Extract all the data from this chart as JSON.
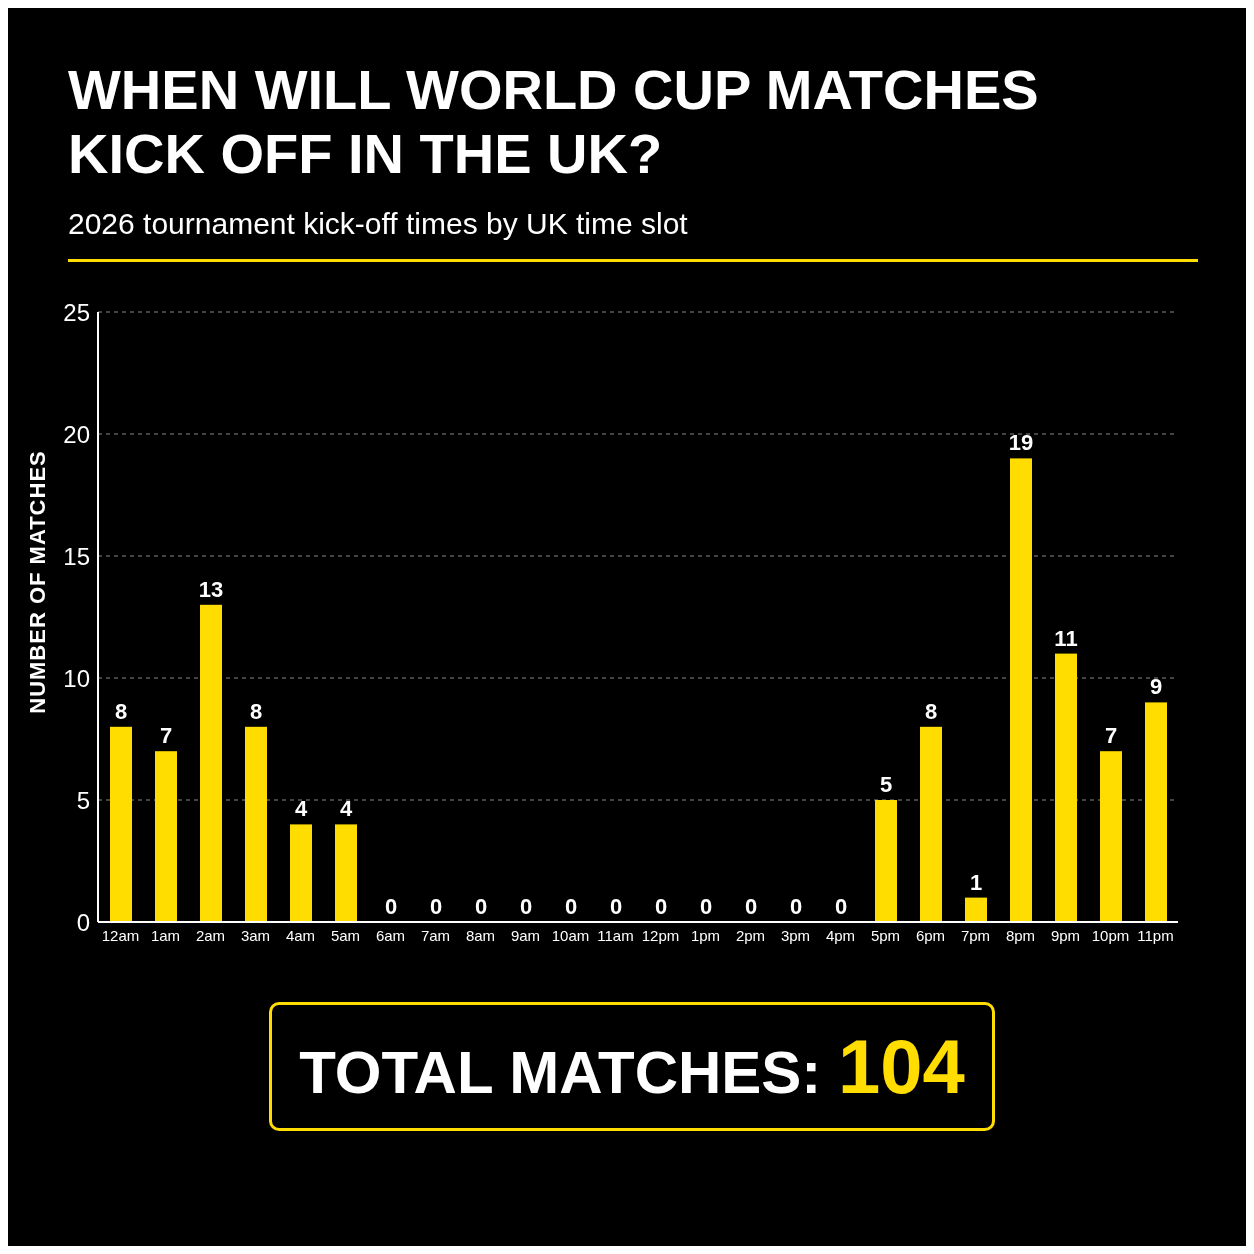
{
  "chart_data": {
    "type": "bar",
    "title": "WHEN WILL WORLD CUP MATCHES KICK OFF IN THE UK?",
    "subtitle": "2026 tournament kick-off times by UK time slot",
    "ylabel": "NUMBER OF MATCHES",
    "categories": [
      "12am",
      "1am",
      "2am",
      "3am",
      "4am",
      "5am",
      "6am",
      "7am",
      "8am",
      "9am",
      "10am",
      "11am",
      "12pm",
      "1pm",
      "2pm",
      "3pm",
      "4pm",
      "5pm",
      "6pm",
      "7pm",
      "8pm",
      "9pm",
      "10pm",
      "11pm"
    ],
    "values": [
      8,
      7,
      13,
      8,
      4,
      4,
      0,
      0,
      0,
      0,
      0,
      0,
      0,
      0,
      0,
      0,
      0,
      5,
      8,
      1,
      19,
      11,
      7,
      9
    ],
    "color": "#ffdd00",
    "ylim": [
      0,
      25
    ],
    "yticks": [
      0,
      5,
      10,
      15,
      20,
      25
    ],
    "grid": "y",
    "data_labels": true,
    "annotations": [
      "TOTAL MATCHES: 104"
    ]
  }
}
